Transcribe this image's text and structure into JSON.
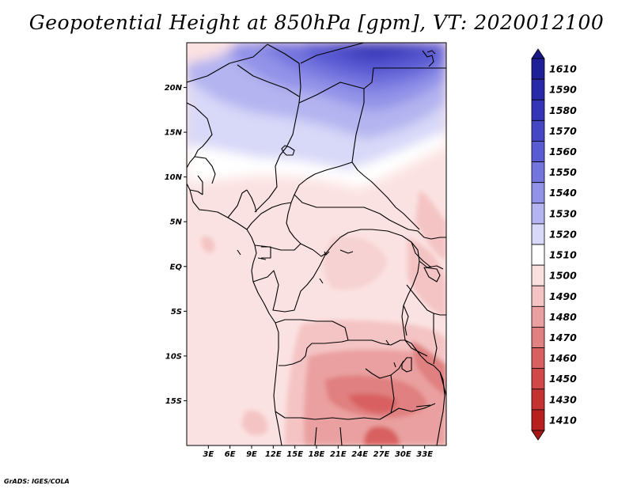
{
  "title": "Geopotential Height at 850hPa [gpm], VT: 2020012100",
  "credit": "GrADS: IGES/COLA",
  "map": {
    "lon_range": [
      0,
      36
    ],
    "lat_range": [
      -20,
      25
    ],
    "x_ticks": [
      {
        "lon": 3,
        "label": "3E"
      },
      {
        "lon": 6,
        "label": "6E"
      },
      {
        "lon": 9,
        "label": "9E"
      },
      {
        "lon": 12,
        "label": "12E"
      },
      {
        "lon": 15,
        "label": "15E"
      },
      {
        "lon": 18,
        "label": "18E"
      },
      {
        "lon": 21,
        "label": "21E"
      },
      {
        "lon": 24,
        "label": "24E"
      },
      {
        "lon": 27,
        "label": "27E"
      },
      {
        "lon": 30,
        "label": "30E"
      },
      {
        "lon": 33,
        "label": "33E"
      }
    ],
    "y_ticks": [
      {
        "lat": 20,
        "label": "20N"
      },
      {
        "lat": 15,
        "label": "15N"
      },
      {
        "lat": 10,
        "label": "10N"
      },
      {
        "lat": 5,
        "label": "5N"
      },
      {
        "lat": 0,
        "label": "EQ"
      },
      {
        "lat": -5,
        "label": "5S"
      },
      {
        "lat": -10,
        "label": "10S"
      },
      {
        "lat": -15,
        "label": "15S"
      }
    ]
  },
  "colorbar": {
    "levels": [
      {
        "label": "1610",
        "color": "#1e1e96"
      },
      {
        "label": "1590",
        "color": "#2828a8"
      },
      {
        "label": "1580",
        "color": "#3434b6"
      },
      {
        "label": "1570",
        "color": "#4646c4"
      },
      {
        "label": "1560",
        "color": "#5a5ad2"
      },
      {
        "label": "1550",
        "color": "#7474de"
      },
      {
        "label": "1540",
        "color": "#9292e8"
      },
      {
        "label": "1530",
        "color": "#b4b4f0"
      },
      {
        "label": "1520",
        "color": "#d8d8f8"
      },
      {
        "label": "1510",
        "color": "#ffffff"
      },
      {
        "label": "1500",
        "color": "#fbe0e0"
      },
      {
        "label": "1490",
        "color": "#f4c4c4"
      },
      {
        "label": "1480",
        "color": "#eaa0a0"
      },
      {
        "label": "1470",
        "color": "#e08080"
      },
      {
        "label": "1460",
        "color": "#d86060"
      },
      {
        "label": "1450",
        "color": "#d04848"
      },
      {
        "label": "1430",
        "color": "#c43232"
      },
      {
        "label": "1410",
        "color": "#b82020"
      }
    ],
    "top_cap_color": "#18188a",
    "bottom_cap_color": "#a81818"
  }
}
